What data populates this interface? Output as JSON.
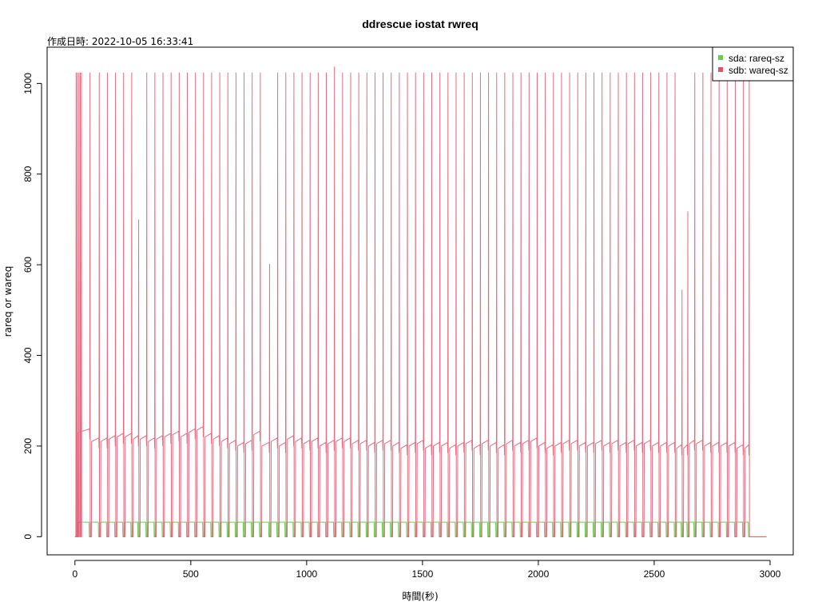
{
  "colors": {
    "sda": "#61D04F",
    "sdb": "#DF536B",
    "axis": "#000000"
  },
  "chart_data": {
    "type": "line",
    "title": "ddrescue iostat rwreq",
    "subtitle": "作成日時: 2022-10-05 16:33:41",
    "xlabel": "時間(秒)",
    "ylabel": "rareq or wareq",
    "xlim": [
      -120,
      3100
    ],
    "ylim": [
      -40,
      1080
    ],
    "x_ticks": [
      0,
      500,
      1000,
      1500,
      2000,
      2500,
      3000
    ],
    "y_ticks": [
      0,
      200,
      400,
      600,
      800,
      1000
    ],
    "grid": false,
    "legend_position": "top-right",
    "cycle": {
      "peak_times": [
        8,
        65,
        105,
        140,
        175,
        210,
        245,
        275,
        310,
        345,
        380,
        415,
        450,
        485,
        520,
        555,
        590,
        625,
        660,
        695,
        730,
        765,
        800,
        840,
        875,
        910,
        945,
        980,
        1015,
        1050,
        1085,
        1120,
        1155,
        1190,
        1225,
        1260,
        1295,
        1330,
        1365,
        1400,
        1435,
        1470,
        1505,
        1540,
        1575,
        1610,
        1645,
        1680,
        1715,
        1750,
        1785,
        1820,
        1855,
        1890,
        1925,
        1960,
        1995,
        2030,
        2065,
        2100,
        2135,
        2170,
        2205,
        2240,
        2275,
        2310,
        2345,
        2380,
        2415,
        2450,
        2485,
        2520,
        2555,
        2590,
        2620,
        2645,
        2675,
        2710,
        2745,
        2780,
        2815,
        2850,
        2885,
        2910
      ],
      "peak_values": [
        1024,
        1024,
        1024,
        1024,
        1024,
        1024,
        1024,
        700,
        1024,
        1024,
        1024,
        1024,
        1024,
        1024,
        1024,
        1024,
        1024,
        1024,
        1024,
        1024,
        1024,
        1024,
        1024,
        602,
        1024,
        1024,
        1024,
        1024,
        1024,
        1024,
        1024,
        1037,
        1024,
        1024,
        1024,
        1024,
        1024,
        1024,
        1024,
        1024,
        1024,
        1024,
        1024,
        1024,
        1024,
        1024,
        1024,
        1024,
        1024,
        1024,
        1024,
        1024,
        1024,
        1024,
        1024,
        1024,
        1024,
        1024,
        1024,
        1024,
        1024,
        1024,
        1024,
        1024,
        1024,
        1024,
        1024,
        1024,
        1024,
        1024,
        1024,
        1024,
        1024,
        1024,
        545,
        718,
        1024,
        1024,
        1024,
        1024,
        1024,
        1024,
        1024,
        1024
      ],
      "plateau_values": [
        0,
        230,
        210,
        210,
        215,
        220,
        220,
        215,
        215,
        210,
        215,
        220,
        225,
        220,
        230,
        235,
        220,
        215,
        210,
        205,
        200,
        205,
        225,
        200,
        210,
        200,
        215,
        210,
        205,
        210,
        200,
        205,
        210,
        210,
        205,
        205,
        200,
        205,
        205,
        200,
        195,
        200,
        205,
        195,
        200,
        200,
        195,
        200,
        205,
        195,
        205,
        200,
        195,
        205,
        200,
        205,
        210,
        200,
        195,
        200,
        205,
        205,
        200,
        200,
        205,
        200,
        205,
        200,
        205,
        200,
        205,
        200,
        200,
        200,
        195,
        195,
        205,
        205,
        200,
        200,
        200,
        200,
        195,
        195
      ],
      "sda_value": 32,
      "end_time": 2915,
      "baseline_end": 2985
    },
    "series": [
      {
        "name": "sda: rareq-sz",
        "color": "#61D04F"
      },
      {
        "name": "sdb: wareq-sz",
        "color": "#DF536B"
      }
    ]
  }
}
